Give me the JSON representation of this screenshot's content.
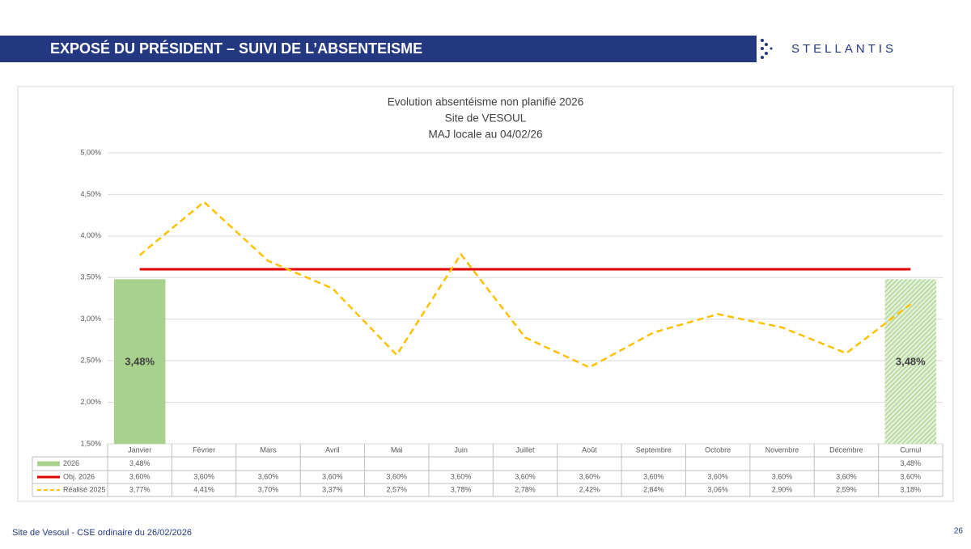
{
  "header": {
    "title": "EXPOSÉ DU PRÉSIDENT – SUIVI DE L’ABSENTEISME",
    "logo": "STELLANTIS"
  },
  "footer": {
    "text": "Site de Vesoul - CSE ordinaire du 26/02/2026",
    "page": "26"
  },
  "chart_data": {
    "type": "combo",
    "title": "Evolution absentéisme non planifié 2026",
    "subtitle": [
      "Site de VESOUL",
      "MAJ locale au 04/02/26"
    ],
    "categories": [
      "Janvier",
      "Février",
      "Mars",
      "Avril",
      "Mai",
      "Juin",
      "Juillet",
      "Août",
      "Septembre",
      "Octobre",
      "Novembre",
      "Décembre",
      "Cumul"
    ],
    "ylim": [
      1.5,
      5
    ],
    "yticks": [
      {
        "value": 1.5,
        "label": "1,50%"
      },
      {
        "value": 2,
        "label": "2,00%"
      },
      {
        "value": 2.5,
        "label": "2,50%"
      },
      {
        "value": 3,
        "label": "3,00%"
      },
      {
        "value": 3.5,
        "label": "3,50%"
      },
      {
        "value": 4,
        "label": "4,00%"
      },
      {
        "value": 4.5,
        "label": "4,50%"
      },
      {
        "value": 5,
        "label": "5,00%"
      }
    ],
    "grid": true,
    "series": [
      {
        "name": "2026",
        "type": "bar",
        "color": "#a9d18e",
        "values": [
          3.48,
          null,
          null,
          null,
          null,
          null,
          null,
          null,
          null,
          null,
          null,
          null,
          3.48
        ],
        "value_labels": [
          "3,48%",
          null,
          null,
          null,
          null,
          null,
          null,
          null,
          null,
          null,
          null,
          null,
          "3,48%"
        ]
      },
      {
        "name": "Obj. 2026",
        "type": "line",
        "color": "#e00000",
        "dashed": false,
        "values": [
          3.6,
          3.6,
          3.6,
          3.6,
          3.6,
          3.6,
          3.6,
          3.6,
          3.6,
          3.6,
          3.6,
          3.6,
          3.6
        ],
        "value_labels": [
          "3,60%",
          "3,60%",
          "3,60%",
          "3,60%",
          "3,60%",
          "3,60%",
          "3,60%",
          "3,60%",
          "3,60%",
          "3,60%",
          "3,60%",
          "3,60%",
          "3,60%"
        ]
      },
      {
        "name": "Réalisé 2025",
        "type": "line",
        "color": "#ffc000",
        "dashed": true,
        "values": [
          3.77,
          4.41,
          3.7,
          3.37,
          2.57,
          3.78,
          2.78,
          2.42,
          2.84,
          3.06,
          2.9,
          2.59,
          3.18
        ],
        "value_labels": [
          "3,77%",
          "4,41%",
          "3,70%",
          "3,37%",
          "2,57%",
          "3,78%",
          "2,78%",
          "2,42%",
          "2,84%",
          "3,06%",
          "2,90%",
          "2,59%",
          "3,18%"
        ]
      }
    ]
  }
}
